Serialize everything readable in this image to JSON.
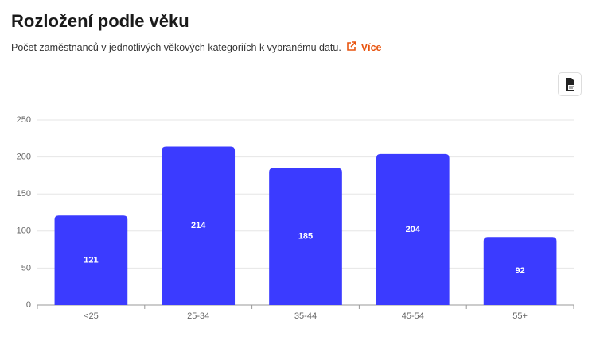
{
  "chart_data": {
    "type": "bar",
    "title": "Rozložení podle věku",
    "subtitle": "Počet zaměstnanců v jednotlivých věkových kategoriích k vybranému datu.",
    "link_text": "Více",
    "categories": [
      "<25",
      "25-34",
      "35-44",
      "45-54",
      "55+"
    ],
    "values": [
      121,
      214,
      185,
      204,
      92
    ],
    "color": "#3b3bff",
    "ylim": [
      0,
      250
    ],
    "yticks": [
      0,
      50,
      100,
      150,
      200,
      250
    ],
    "grid": true
  }
}
